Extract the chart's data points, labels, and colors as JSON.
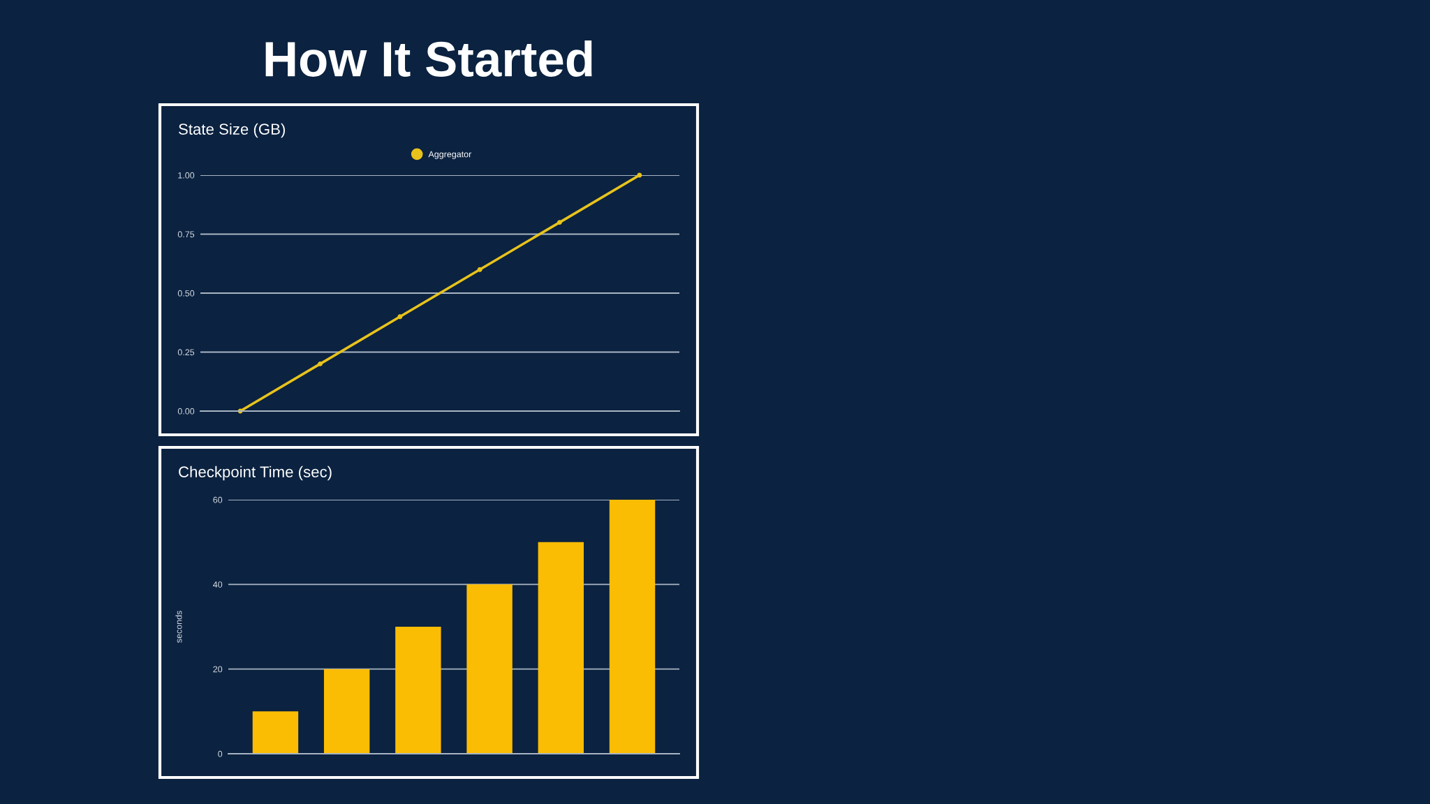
{
  "chart_data": [
    {
      "type": "other",
      "title": "How It Started"
    },
    {
      "type": "line",
      "title": "State Size (GB)",
      "categories": [
        null,
        null,
        null,
        null,
        null,
        null
      ],
      "series": [
        {
          "name": "Aggregator",
          "color": "#e8c31c",
          "values": [
            0,
            0.2,
            0.4,
            0.6,
            0.8,
            1.0
          ]
        }
      ],
      "ylim": [
        0,
        1
      ],
      "yticks": [
        {
          "value": 0,
          "label": "0.00"
        },
        {
          "value": 0.25,
          "label": "0.25"
        },
        {
          "value": 0.5,
          "label": "0.50"
        },
        {
          "value": 0.75,
          "label": "0.75"
        },
        {
          "value": 1,
          "label": "1.00"
        }
      ],
      "grid": "y",
      "legend": "top",
      "marker": "circle",
      "tick_labels": "y"
    },
    {
      "type": "bar",
      "title": "Checkpoint Time (sec)",
      "ylabel": "seconds",
      "categories": [
        null,
        null,
        null,
        null,
        null,
        null
      ],
      "values": [
        10,
        20,
        30,
        40,
        50,
        60
      ],
      "color": "#fbbc04",
      "ylim": [
        0,
        60
      ],
      "yticks": [
        0,
        20,
        40,
        60
      ],
      "grid": "y",
      "tick_labels": "y"
    }
  ]
}
